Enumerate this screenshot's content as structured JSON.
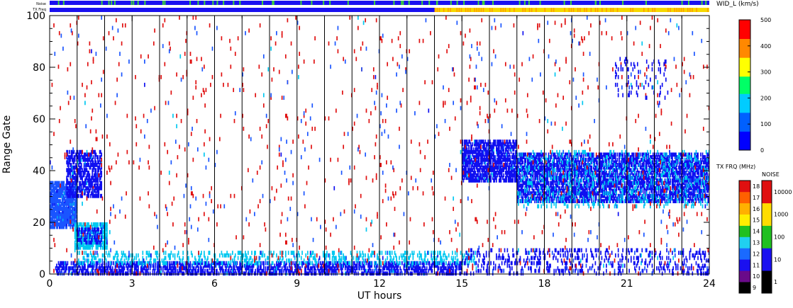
{
  "chart_data": {
    "type": "heatmap",
    "xlabel": "UT hours",
    "ylabel": "Range Gate",
    "xlim": [
      0,
      24
    ],
    "ylim": [
      0,
      100
    ],
    "x_ticks": [
      "0",
      "3",
      "6",
      "9",
      "12",
      "15",
      "18",
      "21",
      "24"
    ],
    "y_ticks": [
      "0",
      "20",
      "40",
      "60",
      "80",
      "100"
    ],
    "hour_lines": [
      1,
      2,
      3,
      4,
      5,
      6,
      7,
      8,
      9,
      10,
      11,
      12,
      13,
      14,
      15,
      16,
      17,
      18,
      19,
      20,
      21,
      22,
      23
    ],
    "top_bars": {
      "noise_label": "Noise",
      "txfreq_label": "TX Freq",
      "txfreq_change_hour": 14,
      "colors": {
        "blue": "#1a10f0",
        "orange": "#ff9a00",
        "yellow": "#f5d800",
        "green": "#3ad03a"
      }
    },
    "scatter_colors": [
      "#1010f0",
      "#1a55ff",
      "#00c8f0",
      "#e01010",
      "#18c818",
      "#000000",
      "#ff9a00"
    ],
    "scatter_regions": [
      {
        "name": "early-echoes",
        "x": [
          0.0,
          1.0
        ],
        "y": [
          18,
          36
        ],
        "color": "#1a55ff",
        "density": 0.85
      },
      {
        "name": "early-rise",
        "x": [
          0.6,
          1.9
        ],
        "y": [
          30,
          48
        ],
        "color": "#1010f0",
        "density": 0.6
      },
      {
        "name": "patch-1h",
        "x": [
          0.9,
          2.1
        ],
        "y": [
          10,
          20
        ],
        "color": "#00c8f0",
        "density": 0.8
      },
      {
        "name": "patch-1h-core",
        "x": [
          1.0,
          1.9
        ],
        "y": [
          12,
          18
        ],
        "color": "#1010f0",
        "density": 0.5
      },
      {
        "name": "ground-band",
        "x": [
          0.2,
          15.0
        ],
        "y": [
          0,
          5
        ],
        "color": "#1010f0",
        "density": 0.55
      },
      {
        "name": "ground-band-top",
        "x": [
          1.0,
          15.5
        ],
        "y": [
          4,
          9
        ],
        "color": "#00c8f0",
        "density": 0.25
      },
      {
        "name": "late-band-start",
        "x": [
          15.0,
          17.0
        ],
        "y": [
          36,
          52
        ],
        "color": "#1010f0",
        "density": 0.7
      },
      {
        "name": "late-band",
        "x": [
          17.0,
          24.0
        ],
        "y": [
          28,
          47
        ],
        "color": "#1010f0",
        "density": 0.65
      },
      {
        "name": "late-band-edge",
        "x": [
          17.0,
          24.0
        ],
        "y": [
          26,
          48
        ],
        "color": "#00c8f0",
        "density": 0.12
      },
      {
        "name": "late-ground",
        "x": [
          15.0,
          24.0
        ],
        "y": [
          0,
          10
        ],
        "color": "#1010f0",
        "density": 0.18
      },
      {
        "name": "background-red",
        "x": [
          0.0,
          24.0
        ],
        "y": [
          0,
          100
        ],
        "color": "#e01010",
        "density": 0.012
      },
      {
        "name": "background-blue",
        "x": [
          0.0,
          24.0
        ],
        "y": [
          0,
          100
        ],
        "color": "#1a55ff",
        "density": 0.004
      },
      {
        "name": "late-high",
        "x": [
          20.5,
          22.5
        ],
        "y": [
          68,
          84
        ],
        "color": "#1010f0",
        "density": 0.1
      }
    ]
  },
  "colorbars": {
    "width": {
      "title": "WID_L (km/s)",
      "ticks": [
        "0",
        "100",
        "200",
        "300",
        "400",
        "500"
      ],
      "colors": [
        "#0000ff",
        "#0060ff",
        "#00ccff",
        "#00ff66",
        "#ffff00",
        "#ff8800",
        "#ff0000"
      ]
    },
    "txfreq": {
      "title": "TX FRQ (MHz)",
      "ticks": [
        "9",
        "10",
        "11",
        "12",
        "13",
        "14",
        "15",
        "16",
        "17",
        "18"
      ],
      "colors": [
        "#000000",
        "#6a0a8a",
        "#1a10f0",
        "#1a6aff",
        "#20d0f0",
        "#20c020",
        "#ffee00",
        "#ffb000",
        "#ff6000",
        "#e01010"
      ]
    },
    "noise": {
      "title": "NOISE",
      "ticks": [
        "1",
        "10",
        "100",
        "1000",
        "10000"
      ],
      "colors": [
        "#000000",
        "#1a10f0",
        "#20c020",
        "#ffdd00",
        "#e01010"
      ]
    }
  }
}
